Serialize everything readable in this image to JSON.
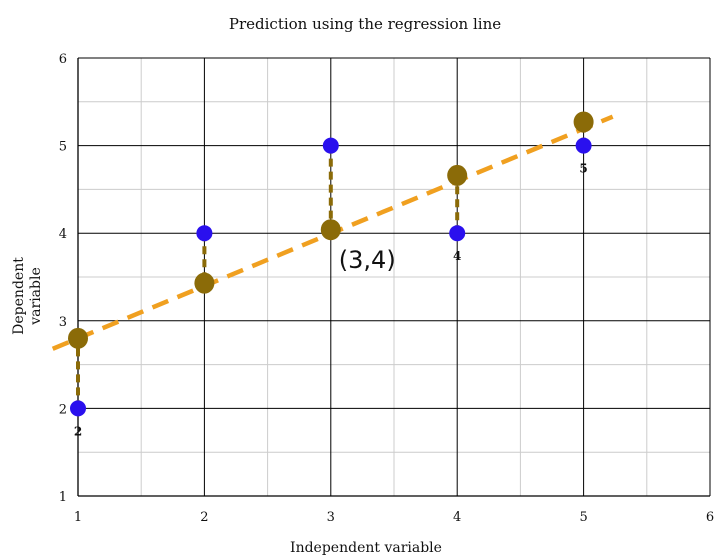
{
  "chart_data": {
    "type": "scatter",
    "title": "Prediction using the regression line",
    "xlabel": "Independent variable",
    "ylabel_lines": [
      "Dependent",
      "variable"
    ],
    "xlim": [
      1,
      6
    ],
    "ylim": [
      1,
      6
    ],
    "x_ticks": [
      "1",
      "2",
      "3",
      "4",
      "5",
      "6"
    ],
    "y_ticks": [
      "1",
      "2",
      "3",
      "4",
      "5",
      "6"
    ],
    "grid": true,
    "minor_grid": true,
    "observed": [
      {
        "x": 1,
        "y": 2,
        "label": "2"
      },
      {
        "x": 2,
        "y": 4,
        "label": ""
      },
      {
        "x": 3,
        "y": 5,
        "label": ""
      },
      {
        "x": 4,
        "y": 4,
        "label": "4"
      },
      {
        "x": 5,
        "y": 5,
        "label": "5"
      }
    ],
    "predicted": [
      {
        "x": 1,
        "y": 2.8
      },
      {
        "x": 2,
        "y": 3.43
      },
      {
        "x": 3,
        "y": 4.04
      },
      {
        "x": 4,
        "y": 4.66
      },
      {
        "x": 5,
        "y": 5.27
      }
    ],
    "regression_line": {
      "x": [
        0.8,
        5.23
      ],
      "y": [
        2.68,
        5.33
      ]
    },
    "annotation": {
      "text": "(3,4)",
      "x": 3,
      "y": 4
    },
    "colors": {
      "observed": "#2a10ee",
      "predicted": "#8b6b08",
      "regression_line": "#f0a020",
      "residual": "#8b6b08",
      "grid_major": "#000000",
      "grid_minor": "#cccccc"
    }
  }
}
